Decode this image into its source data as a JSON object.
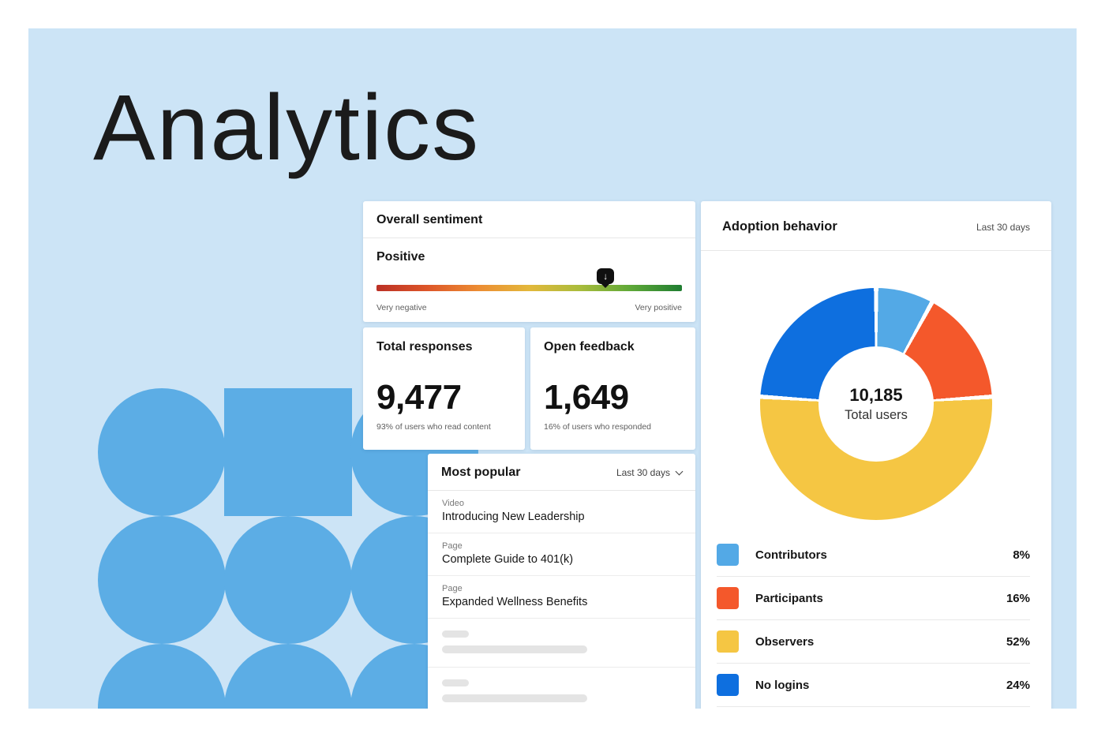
{
  "page": {
    "title": "Analytics"
  },
  "sentiment_card": {
    "title": "Overall sentiment",
    "value_label": "Positive",
    "scale_min_label": "Very negative",
    "scale_max_label": "Very positive",
    "marker_position_pct": 75,
    "gradient_colors": [
      "#bb3025",
      "#dd5629",
      "#ec8c33",
      "#e3b83b",
      "#a9bc3c",
      "#5ea838",
      "#1f7d31"
    ]
  },
  "total_responses_card": {
    "title": "Total responses",
    "value": "9,477",
    "subtext": "93% of users who read content"
  },
  "open_feedback_card": {
    "title": "Open feedback",
    "value": "1,649",
    "subtext": "16% of users who responded"
  },
  "most_popular_card": {
    "title": "Most popular",
    "range_label": "Last 30 days",
    "items": [
      {
        "type": "Video",
        "title": "Introducing New Leadership"
      },
      {
        "type": "Page",
        "title": "Complete Guide to 401(k)"
      },
      {
        "type": "Page",
        "title": "Expanded Wellness Benefits"
      }
    ],
    "skeleton_rows": 2
  },
  "adoption_card": {
    "title": "Adoption behavior",
    "range_label": "Last 30 days",
    "center_value": "10,185",
    "center_label": "Total users"
  },
  "chart_data": {
    "type": "pie",
    "title": "Adoption behavior",
    "subtype": "donut",
    "total_value": 10185,
    "total_label": "Total users",
    "start_angle_deg": 0,
    "legend_position": "below",
    "segments": [
      {
        "label": "Contributors",
        "value_pct": 8,
        "pct_label": "8%",
        "color": "#53a9e6"
      },
      {
        "label": "Participants",
        "value_pct": 16,
        "pct_label": "16%",
        "color": "#f4582b"
      },
      {
        "label": "Observers",
        "value_pct": 52,
        "pct_label": "52%",
        "color": "#f5c643"
      },
      {
        "label": "No logins",
        "value_pct": 24,
        "pct_label": "24%",
        "color": "#0e6fdf"
      }
    ]
  }
}
